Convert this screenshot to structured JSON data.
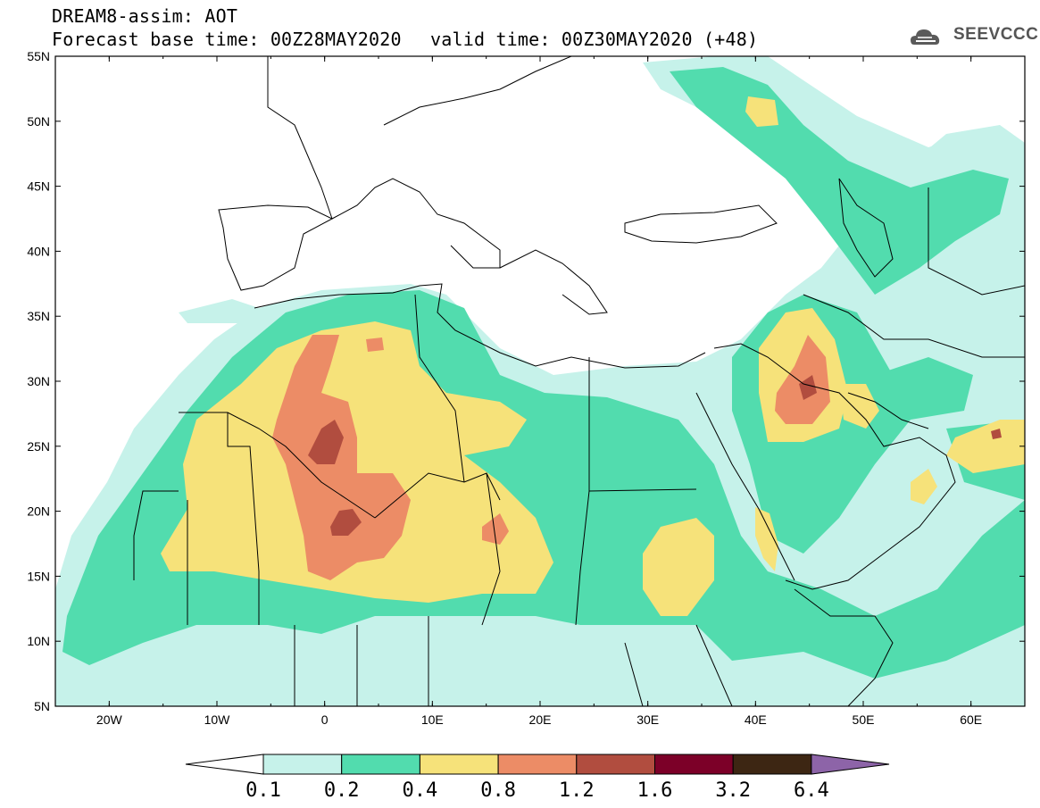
{
  "header": {
    "title": "DREAM8-assim: AOT",
    "base_time": "Forecast base time: 00Z28MAY2020",
    "valid_time": "valid time: 00Z30MAY2020 (+48)"
  },
  "logo": {
    "text": "SEEVCCC",
    "icon": "cloud-icon"
  },
  "map": {
    "lon_range": [
      -25,
      65
    ],
    "lat_range": [
      5,
      55
    ],
    "lat_labels": [
      "5N",
      "10N",
      "15N",
      "20N",
      "25N",
      "30N",
      "35N",
      "40N",
      "45N",
      "50N",
      "55N"
    ],
    "lon_labels": [
      "20W",
      "10W",
      "0",
      "10E",
      "20E",
      "30E",
      "40E",
      "50E",
      "60E"
    ]
  },
  "colorbar": {
    "labels": [
      "0.1",
      "0.2",
      "0.4",
      "0.8",
      "1.2",
      "1.6",
      "3.2",
      "6.4"
    ],
    "colors": {
      "c1": "#c6f2ea",
      "c2": "#52dcae",
      "c3": "#f6e27a",
      "c4": "#ec8c66",
      "c5": "#b14d3f",
      "c6": "#7c0028",
      "c7": "#3d2613",
      "c8": "#8d64a8"
    }
  }
}
